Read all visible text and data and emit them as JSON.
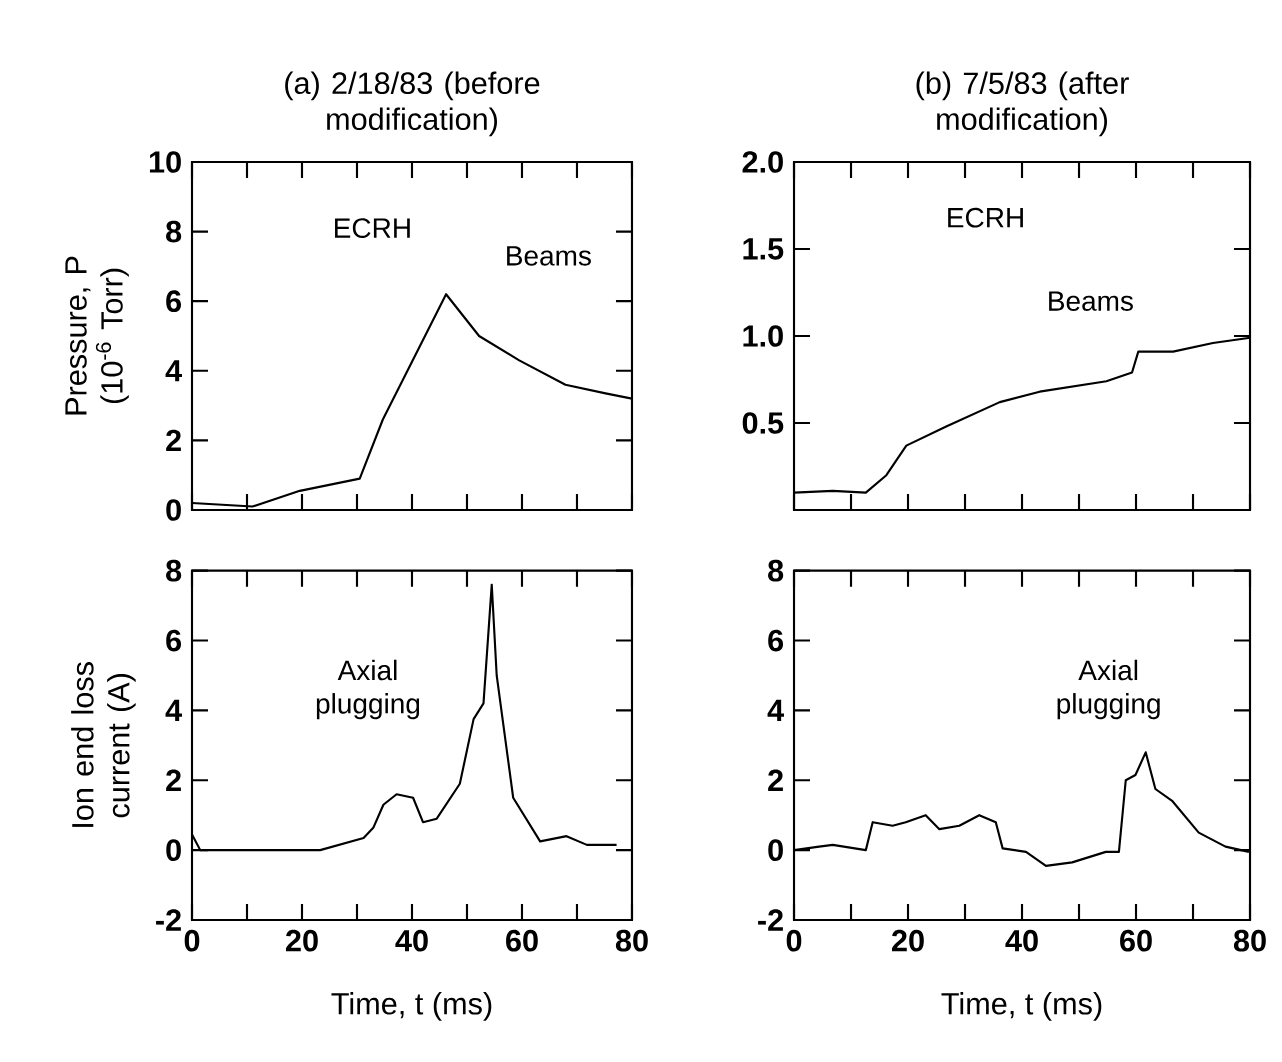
{
  "chart_data": [
    {
      "type": "line",
      "title": "(a) 2/18/83 (before modification)",
      "ylabel": "Pressure, P (10$^{-6}$ Torr)",
      "tick_labels": "y",
      "xlim": [
        0,
        80
      ],
      "xticks": [
        0,
        {
          "value": 10,
          "label": null
        },
        20,
        {
          "value": 30,
          "label": null
        },
        40,
        {
          "value": 50,
          "label": null
        },
        60,
        {
          "value": 70,
          "label": null
        },
        80
      ],
      "ylim": [
        0,
        10
      ],
      "yticks": [
        0,
        2,
        4,
        6,
        8,
        10
      ],
      "x": [
        0,
        11,
        19.6,
        30.5,
        34.7,
        46.2,
        52.2,
        59.5,
        67.9,
        75.2,
        80
      ],
      "series": [
        {
          "color": "#000000",
          "values": [
            0.2,
            0.1,
            0.55,
            0.9,
            2.6,
            6.2,
            5.0,
            4.3,
            3.6,
            3.35,
            3.2
          ]
        }
      ],
      "annotations": [
        "ECRH",
        "Beams"
      ]
    },
    {
      "type": "line",
      "title": "(b) 7/5/83 (after modification)",
      "tick_labels": "y",
      "xlim": [
        0,
        80
      ],
      "xticks": [
        0,
        {
          "value": 10,
          "label": null
        },
        20,
        {
          "value": 30,
          "label": null
        },
        40,
        {
          "value": 50,
          "label": null
        },
        60,
        {
          "value": 70,
          "label": null
        },
        80
      ],
      "ylim": [
        0,
        2
      ],
      "yticks": [
        0.5,
        {
          "value": 1,
          "label": "1.0"
        },
        1.5,
        {
          "value": 2,
          "label": "2.0"
        }
      ],
      "x": [
        0,
        6.8,
        12.6,
        16.2,
        19.7,
        26.7,
        36.1,
        43.1,
        54.8,
        59.3,
        60.4,
        66.5,
        73.5,
        80
      ],
      "series": [
        {
          "color": "#000000",
          "values": [
            0.1,
            0.11,
            0.1,
            0.2,
            0.37,
            0.48,
            0.62,
            0.68,
            0.74,
            0.79,
            0.91,
            0.91,
            0.96,
            0.99
          ]
        }
      ],
      "annotations": [
        "ECRH",
        "Beams"
      ]
    },
    {
      "type": "line",
      "ylabel": "Ion end loss current (A)",
      "xlabel": "Time, t (ms)",
      "xlim": [
        0,
        80
      ],
      "xticks": [
        0,
        {
          "value": 10,
          "label": null
        },
        20,
        {
          "value": 30,
          "label": null
        },
        40,
        {
          "value": 50,
          "label": null
        },
        60,
        {
          "value": 70,
          "label": null
        },
        80
      ],
      "ylim": [
        -2,
        8
      ],
      "yticks": [
        -2,
        0,
        2,
        4,
        6,
        8
      ],
      "x": [
        0,
        1.5,
        7.5,
        23.3,
        31.2,
        33,
        34.8,
        37.2,
        40.2,
        42,
        44.5,
        48.7,
        51.2,
        53,
        54.5,
        55.4,
        58.4,
        63.3,
        68.1,
        71.8,
        77.2
      ],
      "series": [
        {
          "color": "#000000",
          "values": [
            0.45,
            0,
            0,
            0,
            0.35,
            0.65,
            1.3,
            1.6,
            1.5,
            0.8,
            0.9,
            1.9,
            3.75,
            4.2,
            7.6,
            5.0,
            1.5,
            0.25,
            0.4,
            0.15,
            0.15
          ]
        }
      ],
      "annotations": [
        "Axial plugging"
      ]
    },
    {
      "type": "line",
      "xlabel": "Time, t (ms)",
      "xlim": [
        0,
        80
      ],
      "xticks": [
        0,
        {
          "value": 10,
          "label": null
        },
        20,
        {
          "value": 30,
          "label": null
        },
        40,
        {
          "value": 50,
          "label": null
        },
        60,
        {
          "value": 70,
          "label": null
        },
        80
      ],
      "ylim": [
        -2,
        8
      ],
      "yticks": [
        -2,
        0,
        2,
        4,
        6,
        8
      ],
      "x": [
        0,
        4.4,
        6.8,
        12.6,
        13.8,
        17.3,
        19.6,
        23.1,
        25.5,
        29,
        32.5,
        35.4,
        36.6,
        40.7,
        44.2,
        48.8,
        54.7,
        57,
        58.2,
        59.9,
        61.7,
        63.4,
        66.4,
        71,
        75.7,
        79.8
      ],
      "series": [
        {
          "color": "#000000",
          "values": [
            0,
            0.1,
            0.15,
            0,
            0.8,
            0.7,
            0.8,
            1.0,
            0.6,
            0.7,
            1.0,
            0.8,
            0.05,
            -0.05,
            -0.45,
            -0.35,
            -0.05,
            -0.05,
            2.0,
            2.15,
            2.8,
            1.75,
            1.4,
            0.5,
            0.1,
            -0.05
          ]
        }
      ],
      "annotations": [
        "Axial plugging"
      ]
    }
  ]
}
